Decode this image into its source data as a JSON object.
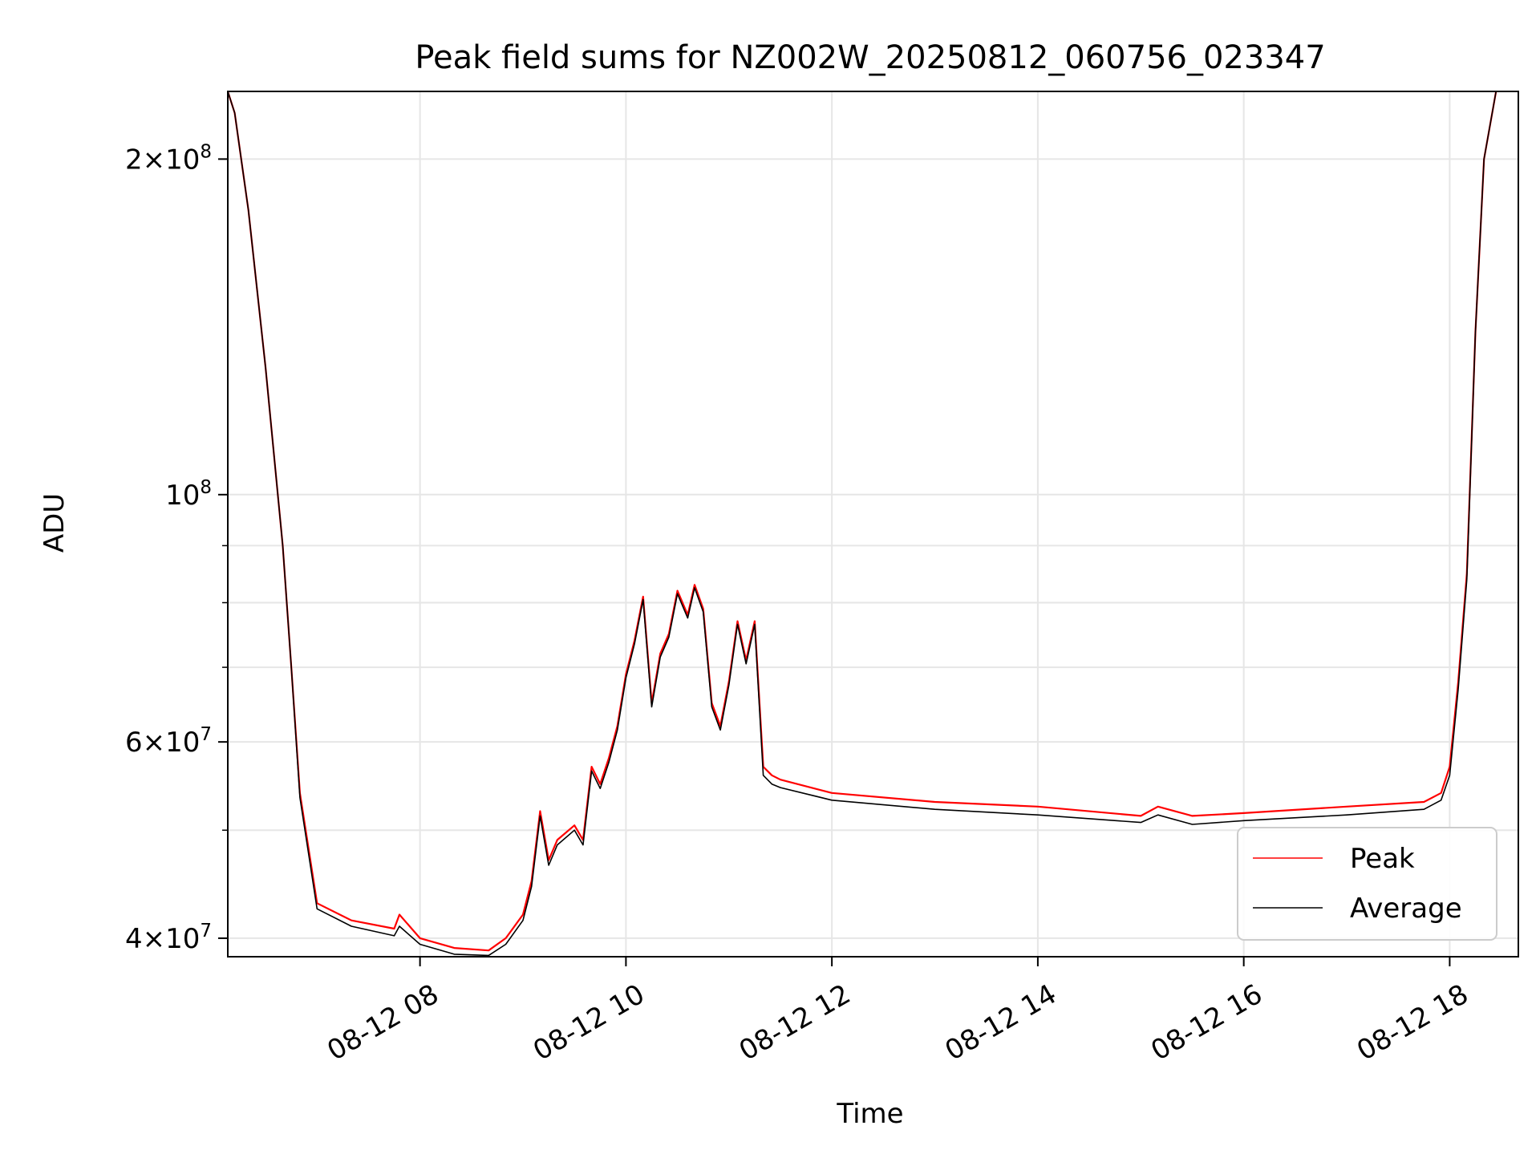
{
  "chart_data": {
    "type": "line",
    "title": "Peak field sums for NZ002W_20250812_060756_023347",
    "xlabel": "Time",
    "ylabel": "ADU",
    "yscale": "log",
    "xlim": [
      "2025-08-12 06:08",
      "2025-08-12 18:40"
    ],
    "ylim": [
      38500000,
      230000000
    ],
    "x_ticks": [
      {
        "value": "2025-08-12 08:00",
        "label": "08-12 08"
      },
      {
        "value": "2025-08-12 10:00",
        "label": "08-12 10"
      },
      {
        "value": "2025-08-12 12:00",
        "label": "08-12 12"
      },
      {
        "value": "2025-08-12 14:00",
        "label": "08-12 14"
      },
      {
        "value": "2025-08-12 16:00",
        "label": "08-12 16"
      },
      {
        "value": "2025-08-12 18:00",
        "label": "08-12 18"
      }
    ],
    "y_major_ticks": [
      {
        "value": 40000000,
        "mant": "4",
        "exp": "7"
      },
      {
        "value": 60000000,
        "mant": "6",
        "exp": "7"
      },
      {
        "value": 100000000,
        "mant": "",
        "exp": "8"
      },
      {
        "value": 200000000,
        "mant": "2",
        "exp": "8"
      }
    ],
    "y_minor_ticks": [
      50000000,
      70000000,
      80000000,
      90000000
    ],
    "grid": true,
    "legend_position": "lower-right",
    "series": [
      {
        "name": "Peak",
        "color": "#ff0000",
        "x": [
          "2025-08-12 06:08",
          "2025-08-12 06:12",
          "2025-08-12 06:20",
          "2025-08-12 06:30",
          "2025-08-12 06:40",
          "2025-08-12 06:45",
          "2025-08-12 06:50",
          "2025-08-12 07:00",
          "2025-08-12 07:20",
          "2025-08-12 07:45",
          "2025-08-12 07:48",
          "2025-08-12 08:00",
          "2025-08-12 08:20",
          "2025-08-12 08:40",
          "2025-08-12 08:50",
          "2025-08-12 09:00",
          "2025-08-12 09:05",
          "2025-08-12 09:10",
          "2025-08-12 09:15",
          "2025-08-12 09:20",
          "2025-08-12 09:30",
          "2025-08-12 09:35",
          "2025-08-12 09:40",
          "2025-08-12 09:45",
          "2025-08-12 09:50",
          "2025-08-12 09:55",
          "2025-08-12 10:00",
          "2025-08-12 10:05",
          "2025-08-12 10:10",
          "2025-08-12 10:15",
          "2025-08-12 10:20",
          "2025-08-12 10:25",
          "2025-08-12 10:30",
          "2025-08-12 10:36",
          "2025-08-12 10:40",
          "2025-08-12 10:45",
          "2025-08-12 10:50",
          "2025-08-12 10:55",
          "2025-08-12 11:00",
          "2025-08-12 11:05",
          "2025-08-12 11:10",
          "2025-08-12 11:15",
          "2025-08-12 11:20",
          "2025-08-12 11:25",
          "2025-08-12 11:30",
          "2025-08-12 12:00",
          "2025-08-12 13:00",
          "2025-08-12 14:00",
          "2025-08-12 15:00",
          "2025-08-12 15:10",
          "2025-08-12 15:30",
          "2025-08-12 16:00",
          "2025-08-12 17:00",
          "2025-08-12 17:45",
          "2025-08-12 17:55",
          "2025-08-12 18:00",
          "2025-08-12 18:05",
          "2025-08-12 18:10",
          "2025-08-12 18:15",
          "2025-08-12 18:20",
          "2025-08-12 18:27"
        ],
        "values": [
          230000000,
          220000000,
          180000000,
          130000000,
          90000000,
          70000000,
          54000000,
          43000000,
          41500000,
          40800000,
          42000000,
          40000000,
          39200000,
          39000000,
          40000000,
          42000000,
          45000000,
          52000000,
          47000000,
          49000000,
          50500000,
          49000000,
          57000000,
          55000000,
          58000000,
          62000000,
          69000000,
          74000000,
          81000000,
          65000000,
          72000000,
          75000000,
          82000000,
          78000000,
          83000000,
          79000000,
          65000000,
          62000000,
          68000000,
          77000000,
          71000000,
          77000000,
          57000000,
          56000000,
          55500000,
          54000000,
          53000000,
          52500000,
          51500000,
          52500000,
          51500000,
          51800000,
          52500000,
          53000000,
          54000000,
          57000000,
          68000000,
          85000000,
          140000000,
          200000000,
          230000000
        ]
      },
      {
        "name": "Average",
        "color": "#000000",
        "x": [
          "2025-08-12 06:08",
          "2025-08-12 06:12",
          "2025-08-12 06:20",
          "2025-08-12 06:30",
          "2025-08-12 06:40",
          "2025-08-12 06:45",
          "2025-08-12 06:50",
          "2025-08-12 07:00",
          "2025-08-12 07:20",
          "2025-08-12 07:45",
          "2025-08-12 07:48",
          "2025-08-12 08:00",
          "2025-08-12 08:20",
          "2025-08-12 08:40",
          "2025-08-12 08:50",
          "2025-08-12 09:00",
          "2025-08-12 09:05",
          "2025-08-12 09:10",
          "2025-08-12 09:15",
          "2025-08-12 09:20",
          "2025-08-12 09:30",
          "2025-08-12 09:35",
          "2025-08-12 09:40",
          "2025-08-12 09:45",
          "2025-08-12 09:50",
          "2025-08-12 09:55",
          "2025-08-12 10:00",
          "2025-08-12 10:05",
          "2025-08-12 10:10",
          "2025-08-12 10:15",
          "2025-08-12 10:20",
          "2025-08-12 10:25",
          "2025-08-12 10:30",
          "2025-08-12 10:36",
          "2025-08-12 10:40",
          "2025-08-12 10:45",
          "2025-08-12 10:50",
          "2025-08-12 10:55",
          "2025-08-12 11:00",
          "2025-08-12 11:05",
          "2025-08-12 11:10",
          "2025-08-12 11:15",
          "2025-08-12 11:20",
          "2025-08-12 11:25",
          "2025-08-12 11:30",
          "2025-08-12 12:00",
          "2025-08-12 13:00",
          "2025-08-12 14:00",
          "2025-08-12 15:00",
          "2025-08-12 15:10",
          "2025-08-12 15:30",
          "2025-08-12 16:00",
          "2025-08-12 17:00",
          "2025-08-12 17:45",
          "2025-08-12 17:55",
          "2025-08-12 18:00",
          "2025-08-12 18:05",
          "2025-08-12 18:10",
          "2025-08-12 18:15",
          "2025-08-12 18:20",
          "2025-08-12 18:27"
        ],
        "values": [
          230000000,
          220000000,
          180000000,
          130000000,
          90000000,
          70000000,
          53500000,
          42500000,
          41000000,
          40200000,
          41000000,
          39500000,
          38700000,
          38600000,
          39500000,
          41500000,
          44500000,
          51500000,
          46500000,
          48500000,
          50000000,
          48500000,
          56500000,
          54500000,
          57500000,
          61500000,
          68500000,
          73500000,
          80500000,
          64500000,
          71500000,
          74500000,
          81500000,
          77500000,
          82500000,
          78500000,
          64500000,
          61500000,
          67500000,
          76500000,
          70500000,
          76500000,
          56000000,
          55000000,
          54600000,
          53200000,
          52200000,
          51600000,
          50800000,
          51600000,
          50600000,
          51000000,
          51600000,
          52200000,
          53200000,
          56000000,
          67000000,
          84000000,
          140000000,
          200000000,
          230000000
        ]
      }
    ]
  }
}
